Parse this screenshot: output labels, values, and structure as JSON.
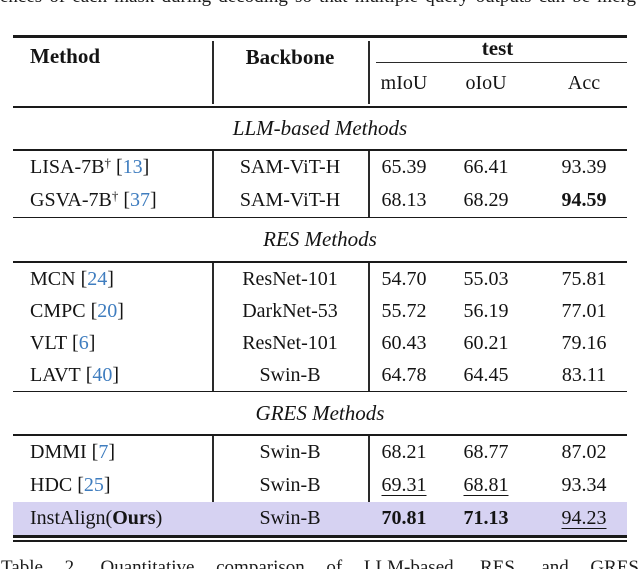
{
  "page": {
    "top_clipped_text": "ences of each mask during decoding so that multiple query outputs can be merg",
    "caption_clipped_text": "Table 2. Quantitative comparison of LLM-based, RES, and GRES"
  },
  "colors": {
    "highlight_row": "#d6d2f2",
    "citation_blue": "#3f7dbf",
    "rule_black": "#1a1a1a"
  },
  "punct": {
    "open_bracket": "[",
    "close_bracket": "]"
  },
  "table": {
    "header": {
      "method": "Method",
      "backbone": "Backbone",
      "group": "test",
      "subcols": {
        "miou": "mIoU",
        "oiou": "oIoU",
        "acc": "Acc"
      }
    },
    "sections": [
      {
        "title": "LLM-based Methods",
        "rows": [
          {
            "method": "LISA-7B",
            "dagger": "†",
            "cite": "13",
            "backbone": "SAM-ViT-H",
            "miou": "65.39",
            "oiou": "66.41",
            "acc": "93.39"
          },
          {
            "method": "GSVA-7B",
            "dagger": "†",
            "cite": "37",
            "backbone": "SAM-ViT-H",
            "miou": "68.13",
            "oiou": "68.29",
            "acc": "94.59"
          }
        ]
      },
      {
        "title": "RES Methods",
        "rows": [
          {
            "method": "MCN",
            "cite": "24",
            "backbone": "ResNet-101",
            "miou": "54.70",
            "oiou": "55.03",
            "acc": "75.81"
          },
          {
            "method": "CMPC",
            "cite": "20",
            "backbone": "DarkNet-53",
            "miou": "55.72",
            "oiou": "56.19",
            "acc": "77.01"
          },
          {
            "method": "VLT",
            "cite": "6",
            "backbone": "ResNet-101",
            "miou": "60.43",
            "oiou": "60.21",
            "acc": "79.16"
          },
          {
            "method": "LAVT",
            "cite": "40",
            "backbone": "Swin-B",
            "miou": "64.78",
            "oiou": "64.45",
            "acc": "83.11"
          }
        ]
      },
      {
        "title": "GRES Methods",
        "rows": [
          {
            "method": "DMMI",
            "cite": "7",
            "backbone": "Swin-B",
            "miou": "68.21",
            "oiou": "68.77",
            "acc": "87.02"
          },
          {
            "method": "HDC",
            "cite": "25",
            "backbone": "Swin-B",
            "miou": "69.31",
            "oiou": "68.81",
            "acc": "93.34"
          },
          {
            "method_prefix": "InstAlign(",
            "method_bold": "Ours",
            "method_suffix": ")",
            "backbone": "Swin-B",
            "miou": "70.81",
            "oiou": "71.13",
            "acc": "94.23"
          }
        ]
      }
    ]
  }
}
